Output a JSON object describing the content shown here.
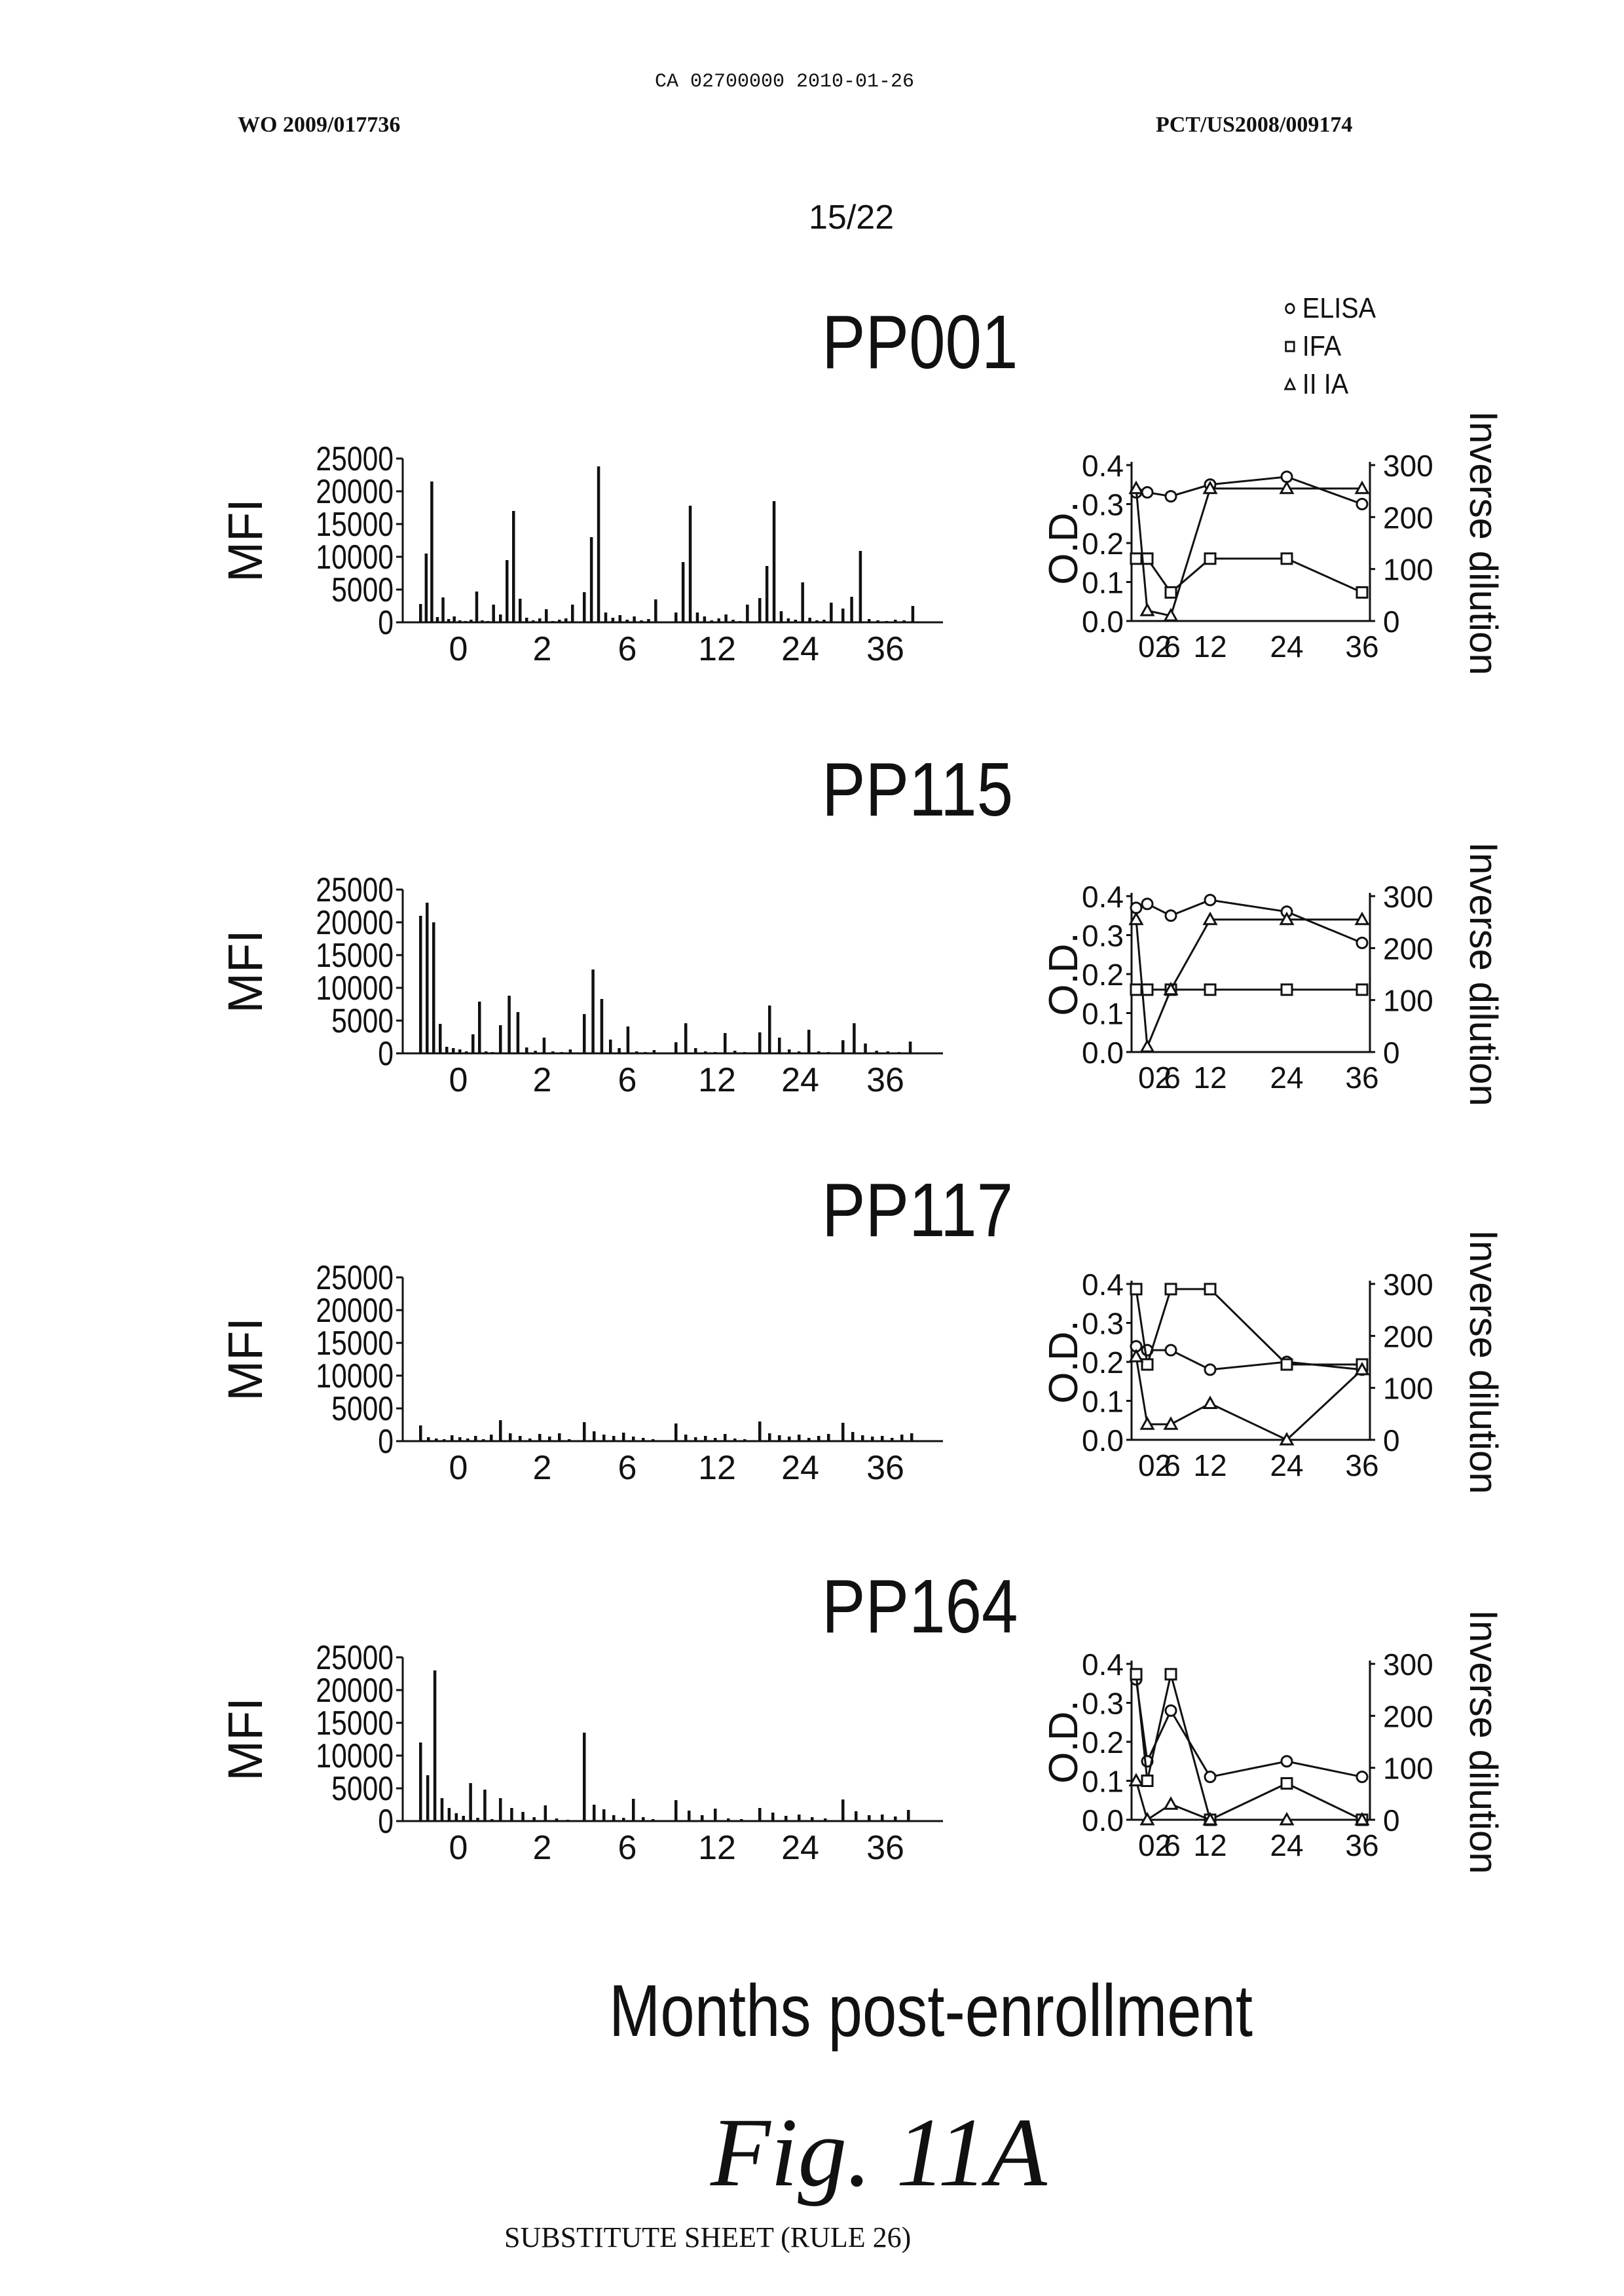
{
  "header": {
    "doc_id": "CA 02700000 2010-01-26",
    "left": "WO 2009/017736",
    "right": "PCT/US2008/009174",
    "page": "15/22"
  },
  "legend": {
    "items": [
      {
        "symbol": "circle",
        "label": "ELISA"
      },
      {
        "symbol": "square",
        "label": "IFA"
      },
      {
        "symbol": "triangle",
        "label": "II IA"
      }
    ]
  },
  "x_title": "Months post-enrollment",
  "figure_label": "Fig. 11A",
  "footer": "SUBSTITUTE SHEET (RULE 26)",
  "chart_data": [
    {
      "panel": "PP001",
      "type": "bar",
      "title": "PP001",
      "ylabel": "MFI",
      "ylim": [
        0,
        25000
      ],
      "yticks": [
        "0",
        "5000",
        "10000",
        "15000",
        "20000",
        "25000"
      ],
      "xticks": [
        "0",
        "2",
        "6",
        "12",
        "24",
        "36"
      ],
      "groups": [
        [
          2800,
          10500,
          21500,
          800,
          3800,
          500,
          900,
          300,
          200,
          400,
          4700,
          300,
          200,
          2700
        ],
        [
          1200,
          9500,
          17000,
          3600,
          700,
          300,
          600,
          2000,
          200,
          400,
          600,
          2700
        ],
        [
          4600,
          13000,
          23800,
          1500,
          700,
          1100,
          400,
          900,
          300,
          500,
          3500
        ],
        [
          1500,
          9200,
          17800,
          1500,
          900,
          300,
          600,
          1200,
          400,
          200,
          2700
        ],
        [
          3700,
          8600,
          18500,
          1700,
          600,
          400,
          6100,
          700,
          300,
          400,
          3000
        ],
        [
          2100,
          3900,
          10900,
          500,
          300,
          200,
          400,
          300,
          2500
        ]
      ]
    },
    {
      "panel": "PP001",
      "type": "line",
      "title": "PP001",
      "ylabel": "O.D.",
      "ylim": [
        0,
        0.4
      ],
      "yticks": [
        "0.0",
        "0.1",
        "0.2",
        "0.3",
        "0.4"
      ],
      "y2label": "Inverse dilution",
      "y2lim": [
        0,
        300
      ],
      "y2ticks": [
        "0",
        "100",
        "200",
        "300"
      ],
      "x": [
        0,
        2,
        6,
        12,
        24,
        36
      ],
      "xticks": [
        "0",
        "2",
        "6",
        "12",
        "24",
        "36"
      ],
      "series": [
        {
          "name": "ELISA",
          "marker": "circle",
          "axis": "left",
          "values": [
            0.33,
            0.33,
            0.32,
            0.35,
            0.37,
            0.3
          ]
        },
        {
          "name": "IFA",
          "marker": "square",
          "axis": "right",
          "values": [
            120,
            120,
            55,
            120,
            120,
            55
          ]
        },
        {
          "name": "II IA",
          "marker": "triangle",
          "axis": "right",
          "values": [
            255,
            20,
            10,
            255,
            255,
            255
          ]
        }
      ]
    },
    {
      "panel": "PP115",
      "type": "bar",
      "title": "PP115",
      "ylabel": "MFI",
      "ylim": [
        0,
        25000
      ],
      "yticks": [
        "0",
        "5000",
        "10000",
        "15000",
        "20000",
        "25000"
      ],
      "xticks": [
        "0",
        "2",
        "6",
        "12",
        "24",
        "36"
      ],
      "groups": [
        [
          21000,
          23000,
          20000,
          4500,
          1000,
          800,
          600,
          300,
          2900,
          7900,
          300,
          200
        ],
        [
          4300,
          8800,
          6300,
          900,
          400,
          2400,
          300,
          200,
          600
        ],
        [
          6000,
          12800,
          8300,
          2100,
          800,
          4100,
          300,
          200,
          500
        ],
        [
          1700,
          4600,
          800,
          300,
          200,
          3100,
          400,
          200
        ],
        [
          3200,
          7300,
          2400,
          600,
          300,
          3600,
          300,
          200
        ],
        [
          2000,
          4600,
          1500,
          400,
          300,
          200,
          1800
        ]
      ]
    },
    {
      "panel": "PP115",
      "type": "line",
      "title": "PP115",
      "ylabel": "O.D.",
      "ylim": [
        0,
        0.4
      ],
      "yticks": [
        "0.0",
        "0.1",
        "0.2",
        "0.3",
        "0.4"
      ],
      "y2label": "Inverse dilution",
      "y2lim": [
        0,
        300
      ],
      "y2ticks": [
        "0",
        "100",
        "200",
        "300"
      ],
      "x": [
        0,
        2,
        6,
        12,
        24,
        36
      ],
      "xticks": [
        "0",
        "2",
        "6",
        "12",
        "24",
        "36"
      ],
      "series": [
        {
          "name": "ELISA",
          "marker": "circle",
          "axis": "left",
          "values": [
            0.37,
            0.38,
            0.35,
            0.39,
            0.36,
            0.28
          ]
        },
        {
          "name": "IFA",
          "marker": "square",
          "axis": "right",
          "values": [
            120,
            120,
            120,
            120,
            120,
            120
          ]
        },
        {
          "name": "II IA",
          "marker": "triangle",
          "axis": "right",
          "values": [
            255,
            10,
            120,
            255,
            255,
            255
          ]
        }
      ]
    },
    {
      "panel": "PP117",
      "type": "bar",
      "title": "PP117",
      "ylabel": "MFI",
      "ylim": [
        0,
        25000
      ],
      "yticks": [
        "0",
        "5000",
        "10000",
        "15000",
        "20000",
        "25000"
      ],
      "xticks": [
        "0",
        "2",
        "6",
        "12",
        "24",
        "36"
      ],
      "groups": [
        [
          2400,
          600,
          400,
          300,
          900,
          600,
          400,
          800,
          300,
          1000
        ],
        [
          3200,
          1200,
          800,
          400,
          1100,
          700,
          1200,
          300
        ],
        [
          2900,
          1500,
          1000,
          800,
          1300,
          700,
          500,
          300
        ],
        [
          2700,
          1000,
          600,
          800,
          500,
          1100,
          400,
          300
        ],
        [
          3000,
          1200,
          900,
          700,
          1000,
          500,
          800,
          1100
        ],
        [
          2800,
          1400,
          900,
          700,
          800,
          500,
          1000,
          1200
        ]
      ]
    },
    {
      "panel": "PP117",
      "type": "line",
      "title": "PP117",
      "ylabel": "O.D.",
      "ylim": [
        0,
        0.4
      ],
      "yticks": [
        "0.0",
        "0.1",
        "0.2",
        "0.3",
        "0.4"
      ],
      "y2label": "Inverse dilution",
      "y2lim": [
        0,
        300
      ],
      "y2ticks": [
        "0",
        "100",
        "200",
        "300"
      ],
      "x": [
        0,
        2,
        6,
        12,
        24,
        36
      ],
      "xticks": [
        "0",
        "2",
        "6",
        "12",
        "24",
        "36"
      ],
      "series": [
        {
          "name": "ELISA",
          "marker": "circle",
          "axis": "left",
          "values": [
            0.24,
            0.23,
            0.23,
            0.18,
            0.2,
            0.18
          ]
        },
        {
          "name": "IFA",
          "marker": "square",
          "axis": "right",
          "values": [
            290,
            145,
            290,
            290,
            145,
            145
          ]
        },
        {
          "name": "II IA",
          "marker": "triangle",
          "axis": "right",
          "values": [
            160,
            30,
            30,
            70,
            0,
            135
          ]
        }
      ]
    },
    {
      "panel": "PP164",
      "type": "bar",
      "title": "PP164",
      "ylabel": "MFI",
      "ylim": [
        0,
        25000
      ],
      "yticks": [
        "0",
        "5000",
        "10000",
        "15000",
        "20000",
        "25000"
      ],
      "xticks": [
        "0",
        "2",
        "6",
        "12",
        "24",
        "36"
      ],
      "groups": [
        [
          12000,
          7000,
          23000,
          3500,
          2000,
          1200,
          800,
          5800,
          500,
          4800,
          300
        ],
        [
          3500,
          2000,
          1400,
          600,
          2400,
          400,
          200
        ],
        [
          13500,
          2500,
          1800,
          900,
          500,
          3400,
          600,
          300
        ],
        [
          3200,
          1600,
          900,
          1900,
          400,
          300
        ],
        [
          2000,
          1300,
          800,
          1000,
          600,
          400
        ],
        [
          3300,
          1500,
          900,
          1000,
          700,
          1700
        ]
      ]
    },
    {
      "panel": "PP164",
      "type": "line",
      "title": "PP164",
      "ylabel": "O.D.",
      "ylim": [
        0,
        0.4
      ],
      "yticks": [
        "0.0",
        "0.1",
        "0.2",
        "0.3",
        "0.4"
      ],
      "y2label": "Inverse dilution",
      "y2lim": [
        0,
        300
      ],
      "y2ticks": [
        "0",
        "100",
        "200",
        "300"
      ],
      "x": [
        0,
        2,
        6,
        12,
        24,
        36
      ],
      "xticks": [
        "0",
        "2",
        "6",
        "12",
        "24",
        "36"
      ],
      "series": [
        {
          "name": "ELISA",
          "marker": "circle",
          "axis": "left",
          "values": [
            0.36,
            0.15,
            0.28,
            0.11,
            0.15,
            0.11
          ]
        },
        {
          "name": "IFA",
          "marker": "square",
          "axis": "right",
          "values": [
            280,
            75,
            280,
            0,
            70,
            0
          ]
        },
        {
          "name": "II IA",
          "marker": "triangle",
          "axis": "right",
          "values": [
            75,
            0,
            30,
            0,
            0,
            0
          ]
        }
      ]
    }
  ]
}
